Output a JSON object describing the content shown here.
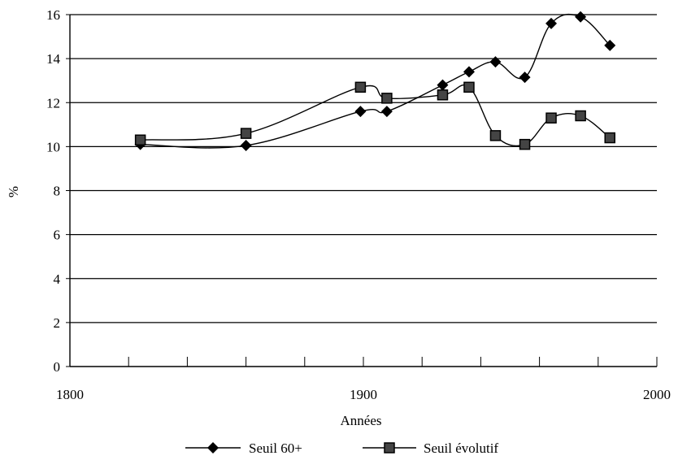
{
  "chart_data": {
    "type": "line",
    "title": "",
    "xlabel": "Années",
    "ylabel": "%",
    "xlim": [
      1800,
      2000
    ],
    "ylim": [
      0,
      16
    ],
    "x_ticks": [
      "1800",
      "1900",
      "2000"
    ],
    "y_ticks": [
      "0",
      "2",
      "4",
      "6",
      "8",
      "10",
      "12",
      "14",
      "16"
    ],
    "grid": "horizontal",
    "legend_position": "bottom",
    "series": [
      {
        "name": "Seuil 60+",
        "marker": "diamond",
        "color": "#000000",
        "points": [
          {
            "x": 1824,
            "y": 10.1
          },
          {
            "x": 1860,
            "y": 10.05
          },
          {
            "x": 1899,
            "y": 11.6
          },
          {
            "x": 1908,
            "y": 11.6
          },
          {
            "x": 1927,
            "y": 12.8
          },
          {
            "x": 1936,
            "y": 13.4
          },
          {
            "x": 1945,
            "y": 13.85
          },
          {
            "x": 1955,
            "y": 13.15
          },
          {
            "x": 1964,
            "y": 15.6
          },
          {
            "x": 1974,
            "y": 15.9
          },
          {
            "x": 1984,
            "y": 14.6
          }
        ]
      },
      {
        "name": "Seuil évolutif",
        "marker": "square",
        "color": "#000000",
        "points": [
          {
            "x": 1824,
            "y": 10.3
          },
          {
            "x": 1860,
            "y": 10.6
          },
          {
            "x": 1899,
            "y": 12.7
          },
          {
            "x": 1908,
            "y": 12.2
          },
          {
            "x": 1927,
            "y": 12.35
          },
          {
            "x": 1936,
            "y": 12.7
          },
          {
            "x": 1945,
            "y": 10.5
          },
          {
            "x": 1955,
            "y": 10.1
          },
          {
            "x": 1964,
            "y": 11.3
          },
          {
            "x": 1974,
            "y": 11.4
          },
          {
            "x": 1984,
            "y": 10.4
          }
        ]
      }
    ]
  }
}
